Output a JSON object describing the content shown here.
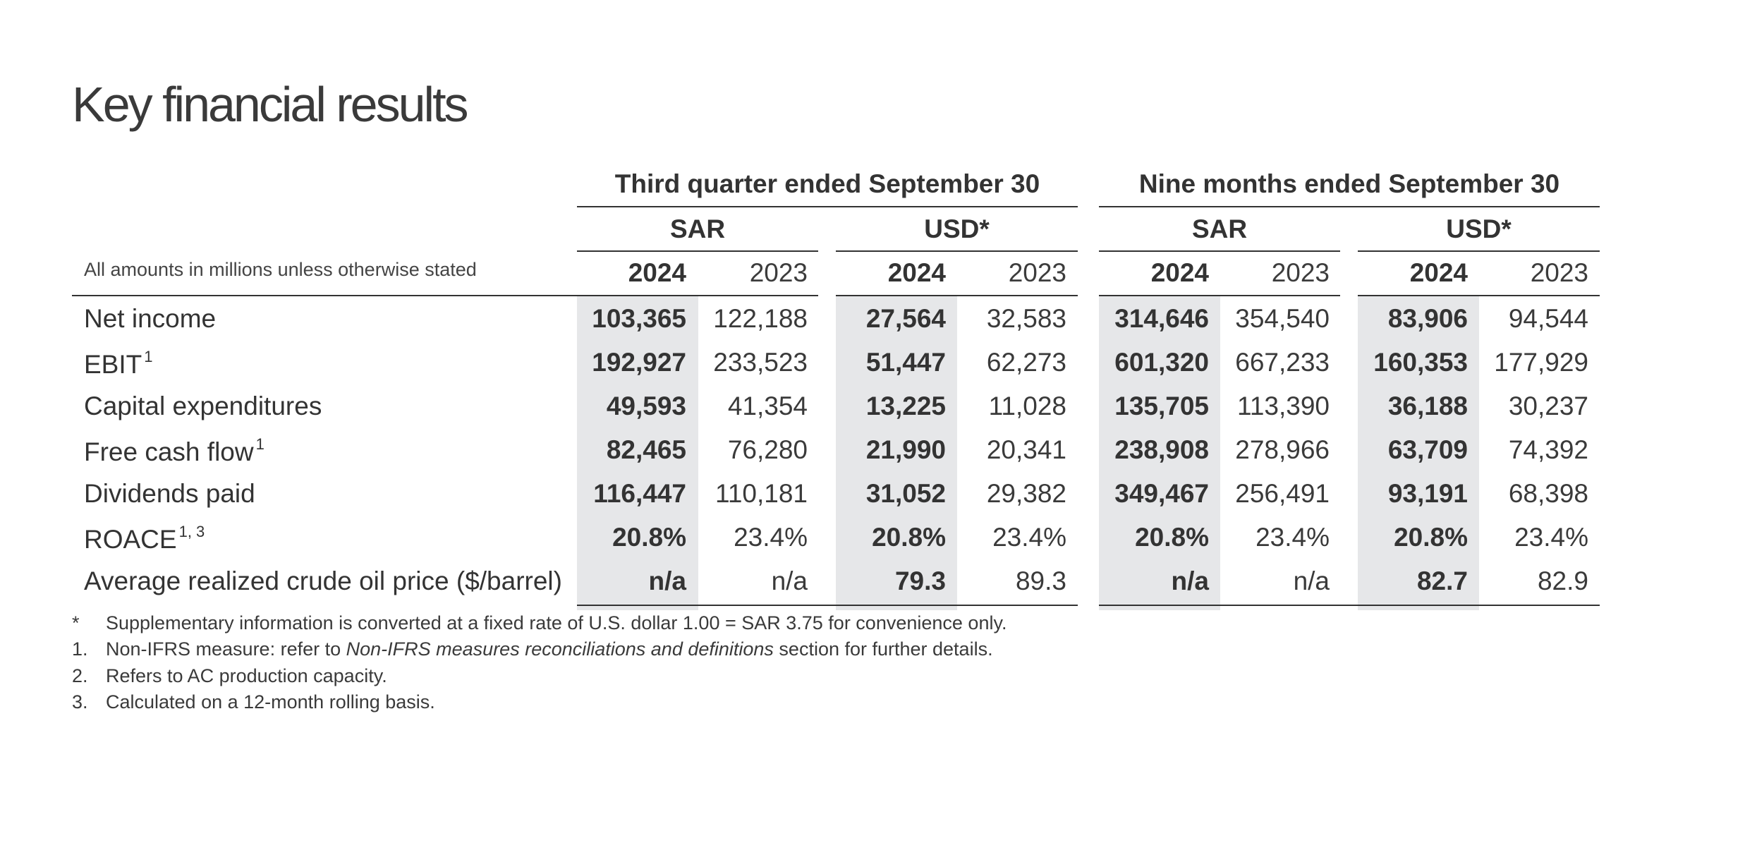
{
  "title": "Key financial results",
  "groups": [
    {
      "label": "Third quarter ended September 30",
      "currencies": [
        "SAR",
        "USD*"
      ]
    },
    {
      "label": "Nine months ended September 30",
      "currencies": [
        "SAR",
        "USD*"
      ]
    }
  ],
  "years": [
    "2024",
    "2023"
  ],
  "amounts_note": "All amounts in millions unless otherwise stated",
  "rows": [
    {
      "label": "Net income",
      "sup": "",
      "values": [
        "103,365",
        "122,188",
        "27,564",
        "32,583",
        "314,646",
        "354,540",
        "83,906",
        "94,544"
      ]
    },
    {
      "label": "EBIT",
      "sup": "1",
      "values": [
        "192,927",
        "233,523",
        "51,447",
        "62,273",
        "601,320",
        "667,233",
        "160,353",
        "177,929"
      ]
    },
    {
      "label": "Capital expenditures",
      "sup": "",
      "values": [
        "49,593",
        "41,354",
        "13,225",
        "11,028",
        "135,705",
        "113,390",
        "36,188",
        "30,237"
      ]
    },
    {
      "label": "Free cash flow",
      "sup": "1",
      "values": [
        "82,465",
        "76,280",
        "21,990",
        "20,341",
        "238,908",
        "278,966",
        "63,709",
        "74,392"
      ]
    },
    {
      "label": "Dividends paid",
      "sup": "",
      "values": [
        "116,447",
        "110,181",
        "31,052",
        "29,382",
        "349,467",
        "256,491",
        "93,191",
        "68,398"
      ]
    },
    {
      "label": "ROACE",
      "sup": "1, 3",
      "values": [
        "20.8%",
        "23.4%",
        "20.8%",
        "23.4%",
        "20.8%",
        "23.4%",
        "20.8%",
        "23.4%"
      ]
    },
    {
      "label": "Average realized crude oil price ($/barrel)",
      "sup": "",
      "values": [
        "n/a",
        "n/a",
        "79.3",
        "89.3",
        "n/a",
        "n/a",
        "82.7",
        "82.9"
      ]
    }
  ],
  "footnotes": [
    {
      "marker": "*",
      "pre": "Supplementary information is converted at a fixed rate of U.S. dollar 1.00 = SAR 3.75 for convenience only.",
      "italic": "",
      "post": ""
    },
    {
      "marker": "1.",
      "pre": "Non-IFRS measure: refer to ",
      "italic": "Non-IFRS measures reconciliations and definitions",
      "post": " section for further details."
    },
    {
      "marker": "2.",
      "pre": "Refers to AC production capacity.",
      "italic": "",
      "post": ""
    },
    {
      "marker": "3.",
      "pre": "Calculated on a 12-month rolling basis.",
      "italic": "",
      "post": ""
    }
  ]
}
